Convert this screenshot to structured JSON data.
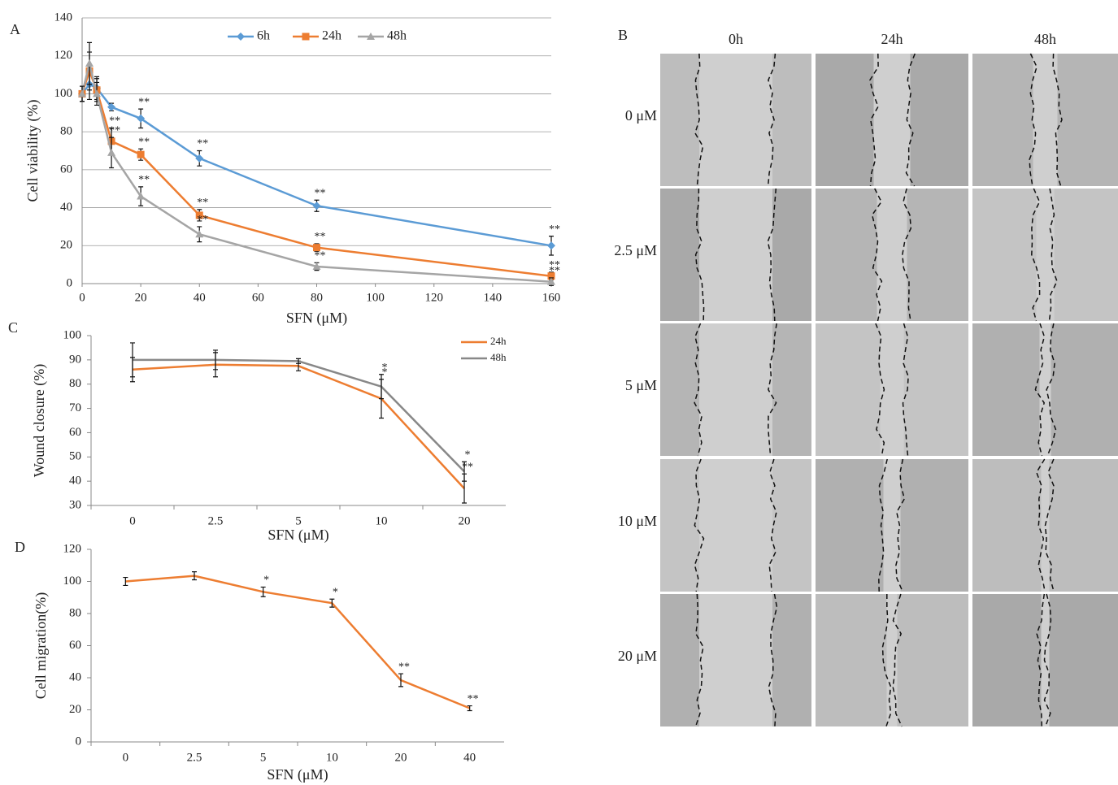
{
  "chart_data": [
    {
      "type": "line",
      "panel": "A",
      "xlabel": "SFN (μM)",
      "ylabel": "Cell  viability (%)",
      "x": [
        0,
        2.5,
        5,
        10,
        20,
        40,
        80,
        160
      ],
      "series": [
        {
          "name": "6h",
          "color": "#5b9bd5",
          "marker": "diamond",
          "values": [
            100,
            105,
            103,
            93,
            87,
            66,
            41,
            20
          ],
          "errors": [
            4,
            8,
            6,
            2,
            5,
            4,
            3,
            5
          ],
          "stars": [
            null,
            null,
            null,
            null,
            "**",
            "**",
            "**",
            "**"
          ]
        },
        {
          "name": "24h",
          "color": "#ed7d31",
          "marker": "square",
          "values": [
            100,
            112,
            102,
            75,
            68,
            36,
            19,
            4
          ],
          "errors": [
            4,
            10,
            6,
            7,
            3,
            3,
            2,
            2
          ],
          "stars": [
            null,
            null,
            null,
            "**",
            "**",
            "**",
            "**",
            "**"
          ]
        },
        {
          "name": "48h",
          "color": "#a5a5a5",
          "marker": "triangle",
          "values": [
            100,
            116,
            100,
            69,
            46,
            26,
            9,
            1
          ],
          "errors": [
            4,
            11,
            6,
            8,
            5,
            4,
            2,
            2
          ],
          "stars": [
            null,
            null,
            null,
            "**",
            "**",
            "**",
            "**",
            "**"
          ]
        }
      ],
      "xlim": [
        0,
        160
      ],
      "xticks": [
        0,
        20,
        40,
        60,
        80,
        100,
        120,
        140,
        160
      ],
      "ylim": [
        0,
        140
      ],
      "yticks": [
        0,
        20,
        40,
        60,
        80,
        100,
        120,
        140
      ],
      "grid": true,
      "legend": "top"
    },
    {
      "type": "line",
      "panel": "C",
      "xlabel": "SFN (μM)",
      "ylabel": "Wound  closure (%)",
      "categories": [
        "0",
        "2.5",
        "5",
        "10",
        "20"
      ],
      "series": [
        {
          "name": "24h",
          "color": "#ed7d31",
          "values": [
            86,
            88,
            87.5,
            74,
            37
          ],
          "errors": [
            5,
            5,
            2,
            8,
            6
          ],
          "stars": [
            null,
            null,
            null,
            "*",
            "**"
          ]
        },
        {
          "name": "48h",
          "color": "#888888",
          "values": [
            90,
            90,
            89.5,
            79,
            44
          ],
          "errors": [
            7,
            4,
            1,
            5,
            4
          ],
          "stars": [
            null,
            null,
            null,
            "*",
            "*"
          ]
        }
      ],
      "ylim": [
        30,
        100
      ],
      "yticks": [
        30,
        40,
        50,
        60,
        70,
        80,
        90,
        100
      ],
      "grid": false,
      "legend": "upper right"
    },
    {
      "type": "line",
      "panel": "D",
      "xlabel": "SFN (μM)",
      "ylabel": "Cell  migration(%)",
      "categories": [
        "0",
        "2.5",
        "5",
        "10",
        "20",
        "40"
      ],
      "color": "#ed7d31",
      "values": [
        100,
        103.5,
        93.5,
        86.5,
        38.5,
        21
      ],
      "errors": [
        2.5,
        2.5,
        3,
        2.5,
        4,
        1.5
      ],
      "stars": [
        null,
        null,
        "*",
        "*",
        "**",
        "**"
      ],
      "ylim": [
        0,
        120
      ],
      "yticks": [
        0,
        20,
        40,
        60,
        80,
        100,
        120
      ],
      "grid": false
    }
  ],
  "panel_b": {
    "panel": "B",
    "columns": [
      "0h",
      "24h",
      "48h"
    ],
    "rows": [
      "0 μM",
      "2.5 μM",
      "5 μM",
      "10 μM",
      "20 μM"
    ]
  }
}
